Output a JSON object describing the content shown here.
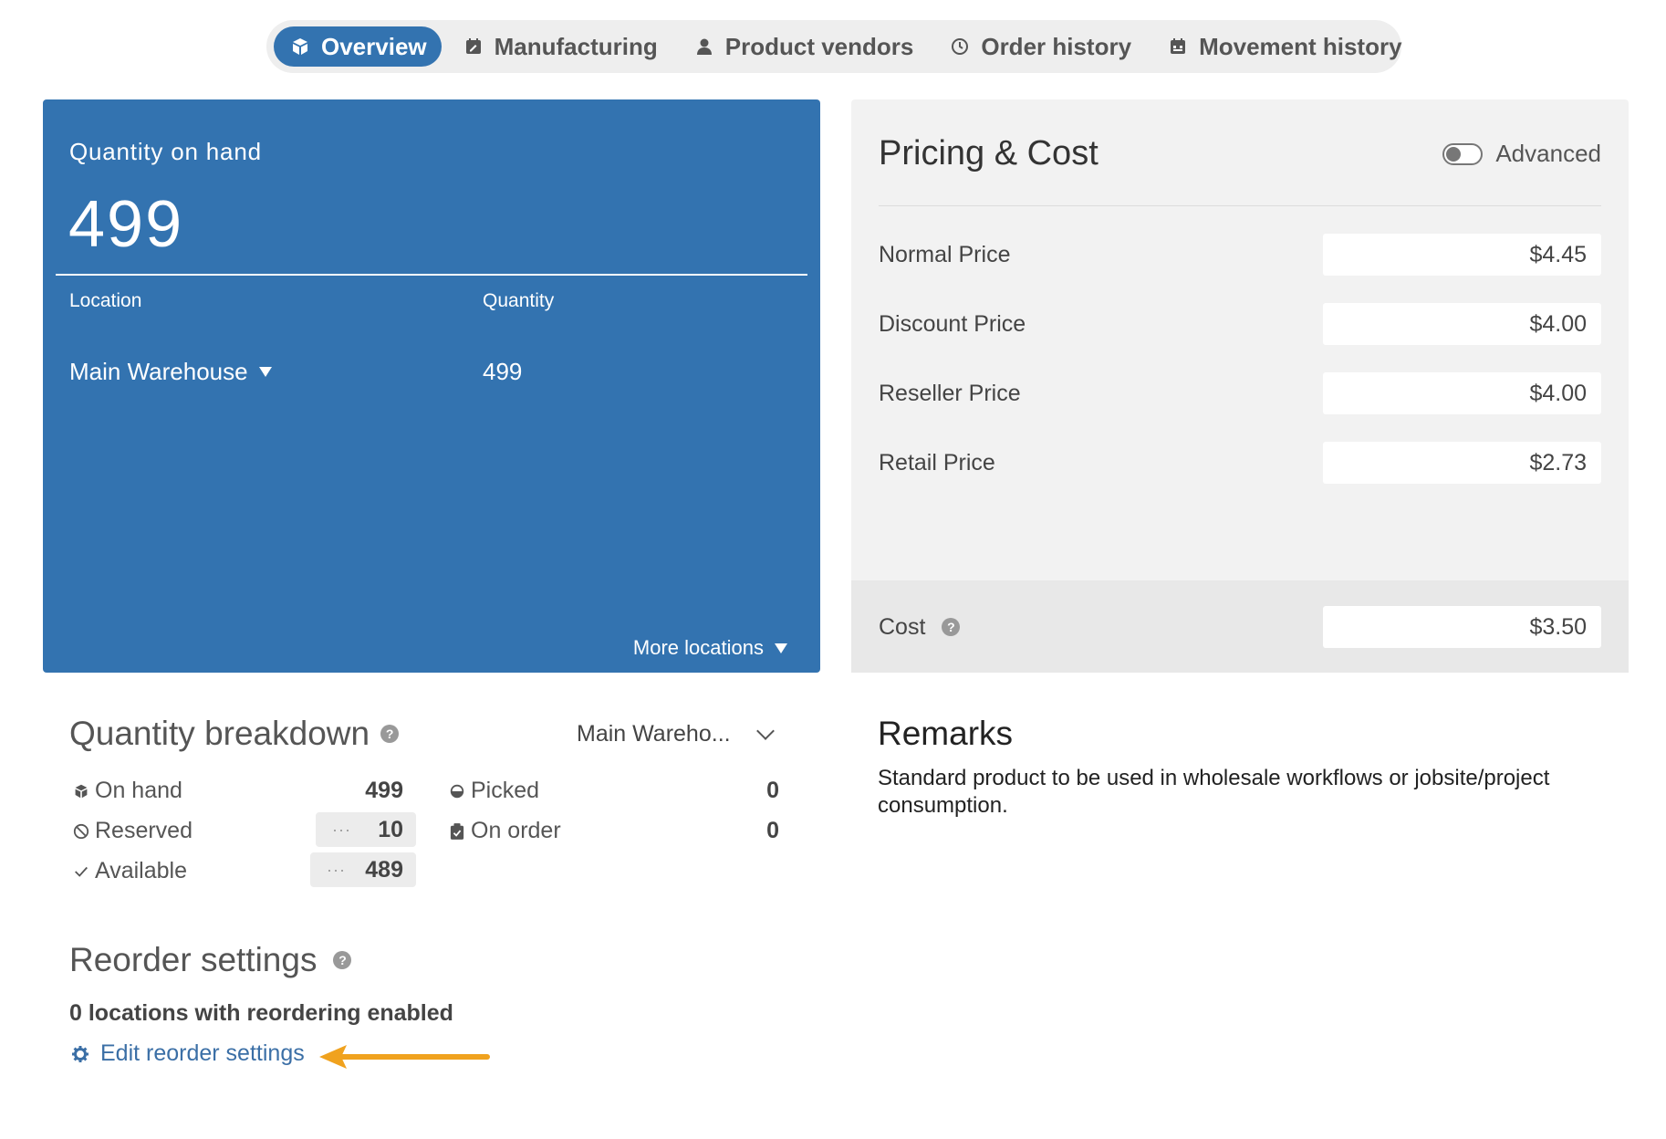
{
  "tabs": [
    {
      "label": "Overview",
      "icon": "box-icon",
      "active": true
    },
    {
      "label": "Manufacturing",
      "icon": "calendar-edit-icon"
    },
    {
      "label": "Product vendors",
      "icon": "person-icon"
    },
    {
      "label": "Order history",
      "icon": "clock-icon"
    },
    {
      "label": "Movement history",
      "icon": "calendar-icon"
    }
  ],
  "quantity_card": {
    "label": "Quantity on hand",
    "total": "499",
    "col_location": "Location",
    "col_quantity": "Quantity",
    "rows": [
      {
        "location": "Main Warehouse",
        "quantity": "499"
      }
    ],
    "more_locations": "More locations"
  },
  "pricing": {
    "title": "Pricing & Cost",
    "advanced_label": "Advanced",
    "advanced_on": false,
    "rows": [
      {
        "label": "Normal Price",
        "value": "$4.45"
      },
      {
        "label": "Discount Price",
        "value": "$4.00"
      },
      {
        "label": "Reseller Price",
        "value": "$4.00"
      },
      {
        "label": "Retail Price",
        "value": "$2.73"
      }
    ],
    "cost_label": "Cost",
    "cost_value": "$3.50"
  },
  "breakdown": {
    "title": "Quantity breakdown",
    "location": "Main Wareho...",
    "items": {
      "on_hand": {
        "label": "On hand",
        "value": "499"
      },
      "reserved": {
        "label": "Reserved",
        "value": "10"
      },
      "available": {
        "label": "Available",
        "value": "489"
      },
      "picked": {
        "label": "Picked",
        "value": "0"
      },
      "on_order": {
        "label": "On order",
        "value": "0"
      }
    },
    "dots": "···"
  },
  "reorder": {
    "title": "Reorder settings",
    "summary": "0 locations with reordering enabled",
    "edit_link": "Edit reorder settings"
  },
  "remarks": {
    "title": "Remarks",
    "text": "Standard product to be used in wholesale workflows or jobsite/project consumption."
  },
  "colors": {
    "primary": "#3373b0",
    "arrow": "#f0a21e",
    "link": "#3b6fa6"
  }
}
